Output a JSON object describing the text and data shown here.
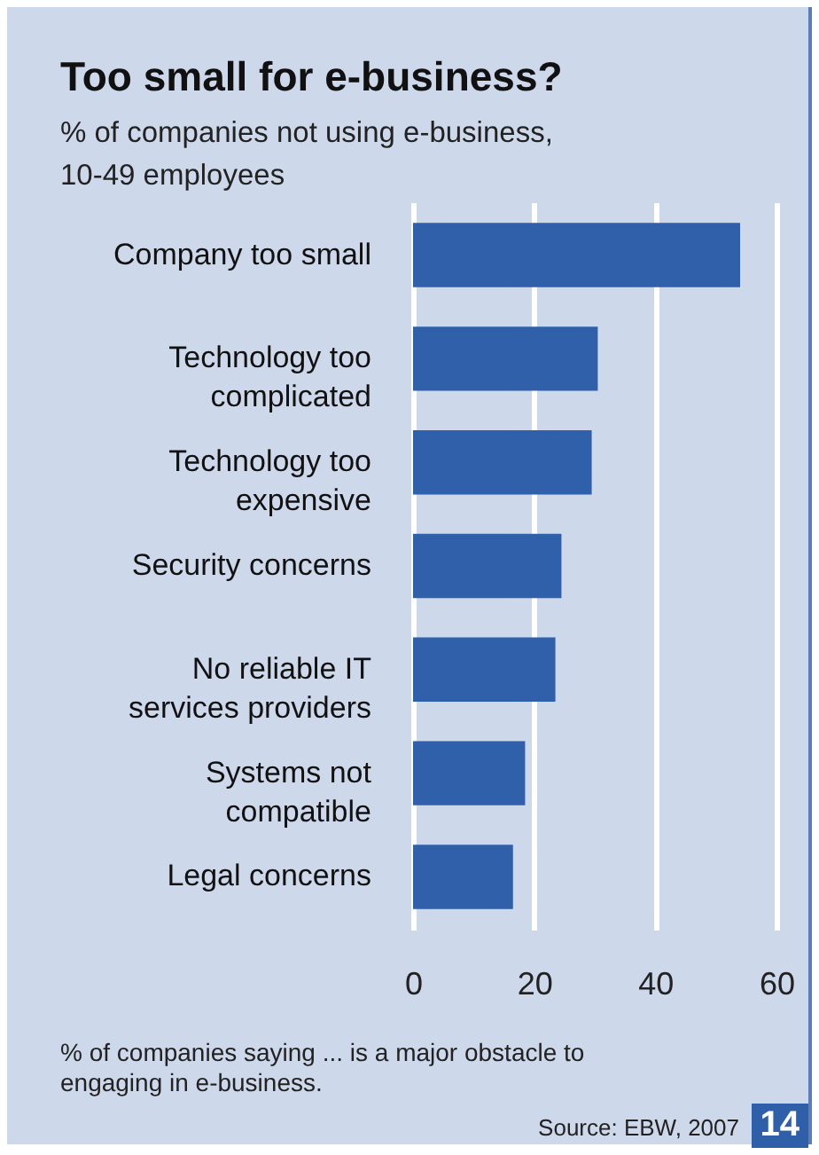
{
  "chart_data": {
    "type": "bar",
    "orientation": "horizontal",
    "title": "Too small for e-business?",
    "subtitle": "% of companies not using e-business, 10-49 employees",
    "categories": [
      "Company too small",
      "Technology too\ncomplicated",
      "Technology too\nexpensive",
      "Security concerns",
      "No reliable IT\nservices providers",
      "Systems not\ncompatible",
      "Legal concerns"
    ],
    "values": [
      54,
      30.5,
      29.5,
      24.5,
      23.5,
      18.5,
      16.5
    ],
    "color": "#3060aa",
    "xlim": [
      0,
      60
    ],
    "xticks": [
      0,
      20,
      40,
      60
    ],
    "grid": "x",
    "annotations": [
      "% of companies saying ... is a major obstacle to engaging in e-business.",
      "Source: EBW, 2007",
      "14"
    ]
  }
}
